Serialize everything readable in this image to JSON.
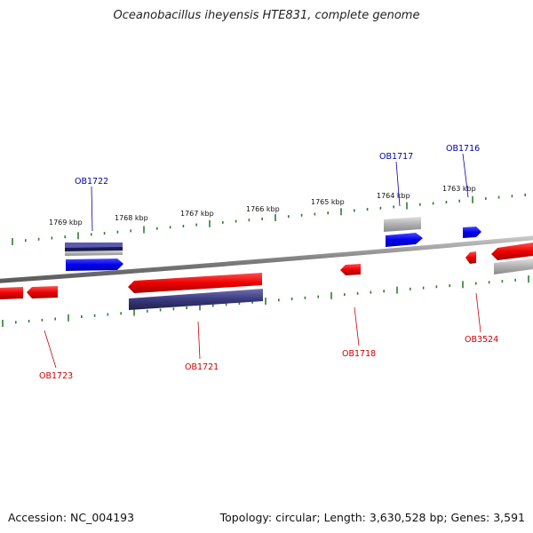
{
  "title": "Oceanobacillus iheyensis HTE831, complete genome",
  "footer": {
    "accession": "Accession: NC_004193",
    "summary": "Topology: circular; Length: 3,630,528 bp; Genes: 3,591"
  },
  "colors": {
    "forward_gene": "#0000ee",
    "reverse_gene": "#ee0000",
    "backbone": "#808080",
    "tick": "#2e7d32",
    "label_forward": "#0000aa",
    "label_reverse": "#cc0000",
    "rna": "#b0b0b0",
    "dark_feature": "#3a3a80"
  },
  "scale_labels": [
    "1769 kbp",
    "1768 kbp",
    "1767 kbp",
    "1766 kbp",
    "1765 kbp",
    "1764 kbp",
    "1763 kbp"
  ],
  "gene_labels": {
    "ob1722": "OB1722",
    "ob1717": "OB1717",
    "ob1716": "OB1716",
    "ob1723": "OB1723",
    "ob1721": "OB1721",
    "ob1718": "OB1718",
    "ob3524": "OB3524"
  }
}
